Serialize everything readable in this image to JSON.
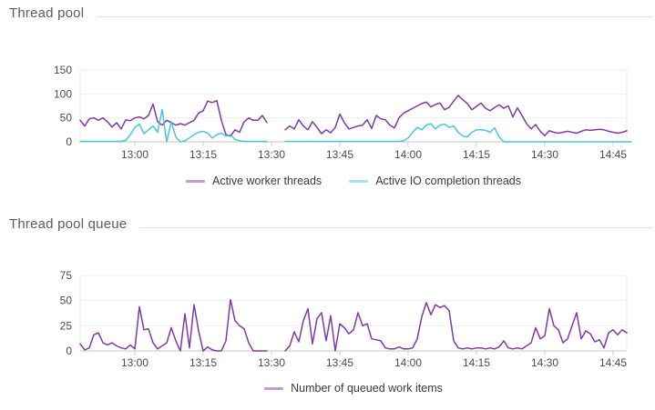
{
  "sections": [
    {
      "title": "Thread pool"
    },
    {
      "title": "Thread pool queue"
    }
  ],
  "chart_data": [
    {
      "type": "line",
      "title": "Thread pool",
      "x_start": "12:48",
      "x_end": "14:48",
      "x_minutes_span": 120,
      "x_tick_labels": [
        "13:00",
        "13:15",
        "13:30",
        "13:45",
        "14:00",
        "14:15",
        "14:30",
        "14:45"
      ],
      "x_tick_offsets_min": [
        12,
        27,
        42,
        57,
        72,
        87,
        102,
        117
      ],
      "y_ticks": [
        0,
        50,
        100,
        150
      ],
      "ylim": [
        0,
        150
      ],
      "grid": "horizontal",
      "legend_position": "bottom-center",
      "series": [
        {
          "name": "Active worker threads",
          "color": "#7d3ba6",
          "values": [
            45,
            33,
            48,
            50,
            45,
            50,
            42,
            31,
            40,
            27,
            46,
            44,
            50,
            52,
            48,
            55,
            79,
            42,
            35,
            45,
            40,
            35,
            38,
            35,
            40,
            45,
            60,
            65,
            85,
            82,
            86,
            45,
            15,
            12,
            25,
            20,
            42,
            50,
            45,
            45,
            55,
            40,
            null,
            null,
            null,
            25,
            33,
            27,
            46,
            33,
            25,
            42,
            30,
            17,
            25,
            19,
            30,
            58,
            40,
            27,
            30,
            33,
            35,
            46,
            28,
            55,
            48,
            46,
            35,
            29,
            50,
            60,
            65,
            70,
            75,
            80,
            83,
            73,
            78,
            81,
            67,
            72,
            85,
            97,
            88,
            80,
            67,
            74,
            81,
            70,
            65,
            72,
            77,
            70,
            75,
            52,
            71,
            55,
            38,
            27,
            36,
            22,
            13,
            23,
            20,
            18,
            20,
            22,
            20,
            18,
            22,
            25,
            24,
            25,
            26,
            25,
            22,
            20,
            18,
            20,
            23
          ]
        },
        {
          "name": "Active IO completion threads",
          "color": "#4bc4dd",
          "values": [
            1,
            1,
            1,
            1,
            1,
            1,
            1,
            1,
            1,
            1,
            3,
            15,
            30,
            37,
            17,
            25,
            33,
            20,
            67,
            0,
            42,
            10,
            0,
            2,
            8,
            15,
            20,
            22,
            18,
            8,
            15,
            18,
            12,
            15,
            5,
            2,
            1,
            1,
            1,
            1,
            1,
            1,
            null,
            null,
            null,
            1,
            1,
            1,
            1,
            1,
            1,
            1,
            1,
            1,
            1,
            1,
            1,
            1,
            1,
            1,
            1,
            1,
            1,
            1,
            1,
            1,
            1,
            1,
            1,
            1,
            1,
            2,
            8,
            20,
            30,
            25,
            35,
            38,
            27,
            35,
            37,
            30,
            33,
            20,
            12,
            10,
            20,
            25,
            25,
            24,
            20,
            29,
            10,
            0,
            0,
            0,
            0,
            0,
            0,
            0,
            0,
            0,
            0,
            0,
            0,
            0,
            0,
            0,
            0,
            0,
            0,
            0,
            0,
            0,
            0,
            0,
            0,
            0,
            0,
            0,
            0,
            0
          ]
        }
      ]
    },
    {
      "type": "line",
      "title": "Thread pool queue",
      "x_start": "12:48",
      "x_end": "14:48",
      "x_minutes_span": 120,
      "x_tick_labels": [
        "13:00",
        "13:15",
        "13:30",
        "13:45",
        "14:00",
        "14:15",
        "14:30",
        "14:45"
      ],
      "x_tick_offsets_min": [
        12,
        27,
        42,
        57,
        72,
        87,
        102,
        117
      ],
      "y_ticks": [
        0,
        25,
        50,
        75
      ],
      "ylim": [
        0,
        75
      ],
      "grid": "horizontal",
      "legend_position": "bottom-center",
      "series": [
        {
          "name": "Number of queued work items",
          "color": "#7d3ba6",
          "values": [
            7,
            1,
            3,
            16,
            18,
            8,
            6,
            8,
            5,
            3,
            2,
            6,
            2,
            44,
            21,
            22,
            8,
            2,
            5,
            8,
            23,
            10,
            0,
            37,
            3,
            46,
            20,
            0,
            4,
            1,
            0,
            0,
            10,
            51,
            30,
            25,
            22,
            8,
            0,
            0,
            0,
            0,
            null,
            null,
            null,
            0,
            5,
            19,
            9,
            30,
            42,
            7,
            32,
            38,
            10,
            35,
            0,
            27,
            23,
            17,
            21,
            38,
            25,
            27,
            12,
            11,
            10,
            3,
            2,
            2,
            4,
            2,
            2,
            3,
            12,
            34,
            48,
            36,
            46,
            43,
            45,
            40,
            10,
            3,
            2,
            3,
            2,
            3,
            3,
            2,
            3,
            2,
            4,
            10,
            3,
            2,
            3,
            2,
            5,
            8,
            23,
            12,
            15,
            42,
            25,
            21,
            8,
            12,
            25,
            38,
            12,
            20,
            17,
            9,
            11,
            3,
            18,
            21,
            16,
            21,
            18
          ]
        }
      ]
    }
  ]
}
